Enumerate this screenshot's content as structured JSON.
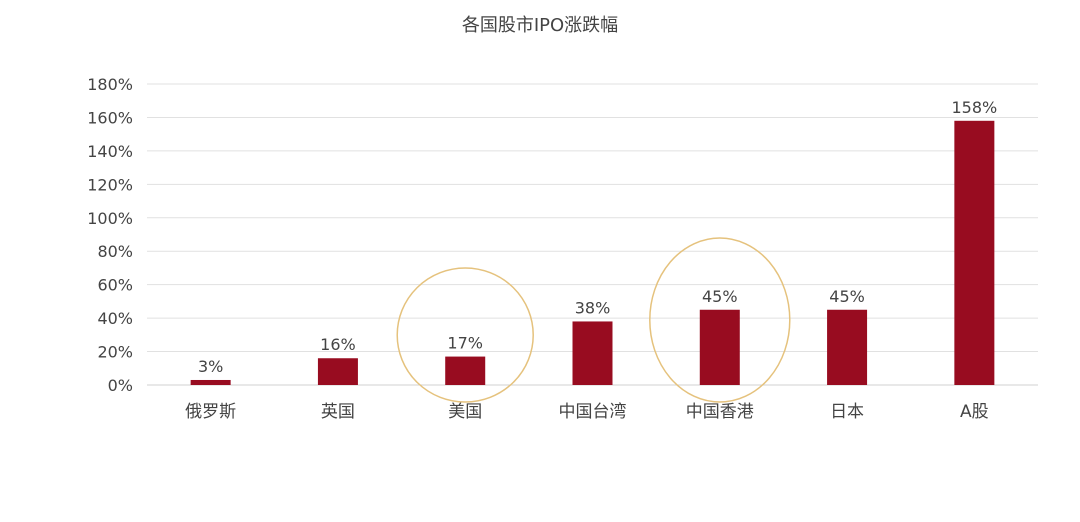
{
  "chart_data": {
    "type": "bar",
    "title": "各国股市IPO涨跌幅",
    "categories": [
      "俄罗斯",
      "英国",
      "美国",
      "中国台湾",
      "中国香港",
      "日本",
      "A股"
    ],
    "values": [
      3,
      16,
      17,
      38,
      45,
      45,
      158
    ],
    "value_labels": [
      "3%",
      "16%",
      "17%",
      "38%",
      "45%",
      "45%",
      "158%"
    ],
    "y_ticks": [
      "0%",
      "20%",
      "40%",
      "60%",
      "80%",
      "100%",
      "120%",
      "140%",
      "160%",
      "180%"
    ],
    "ylim": [
      0,
      180
    ],
    "y_tick_step": 20,
    "grid": true,
    "highlighted_categories": [
      "美国",
      "中国香港"
    ],
    "colors": {
      "bar": "#980c20",
      "gridline": "#e1e1e1",
      "highlight_ring": "#e5c27d",
      "text": "#444444"
    }
  }
}
